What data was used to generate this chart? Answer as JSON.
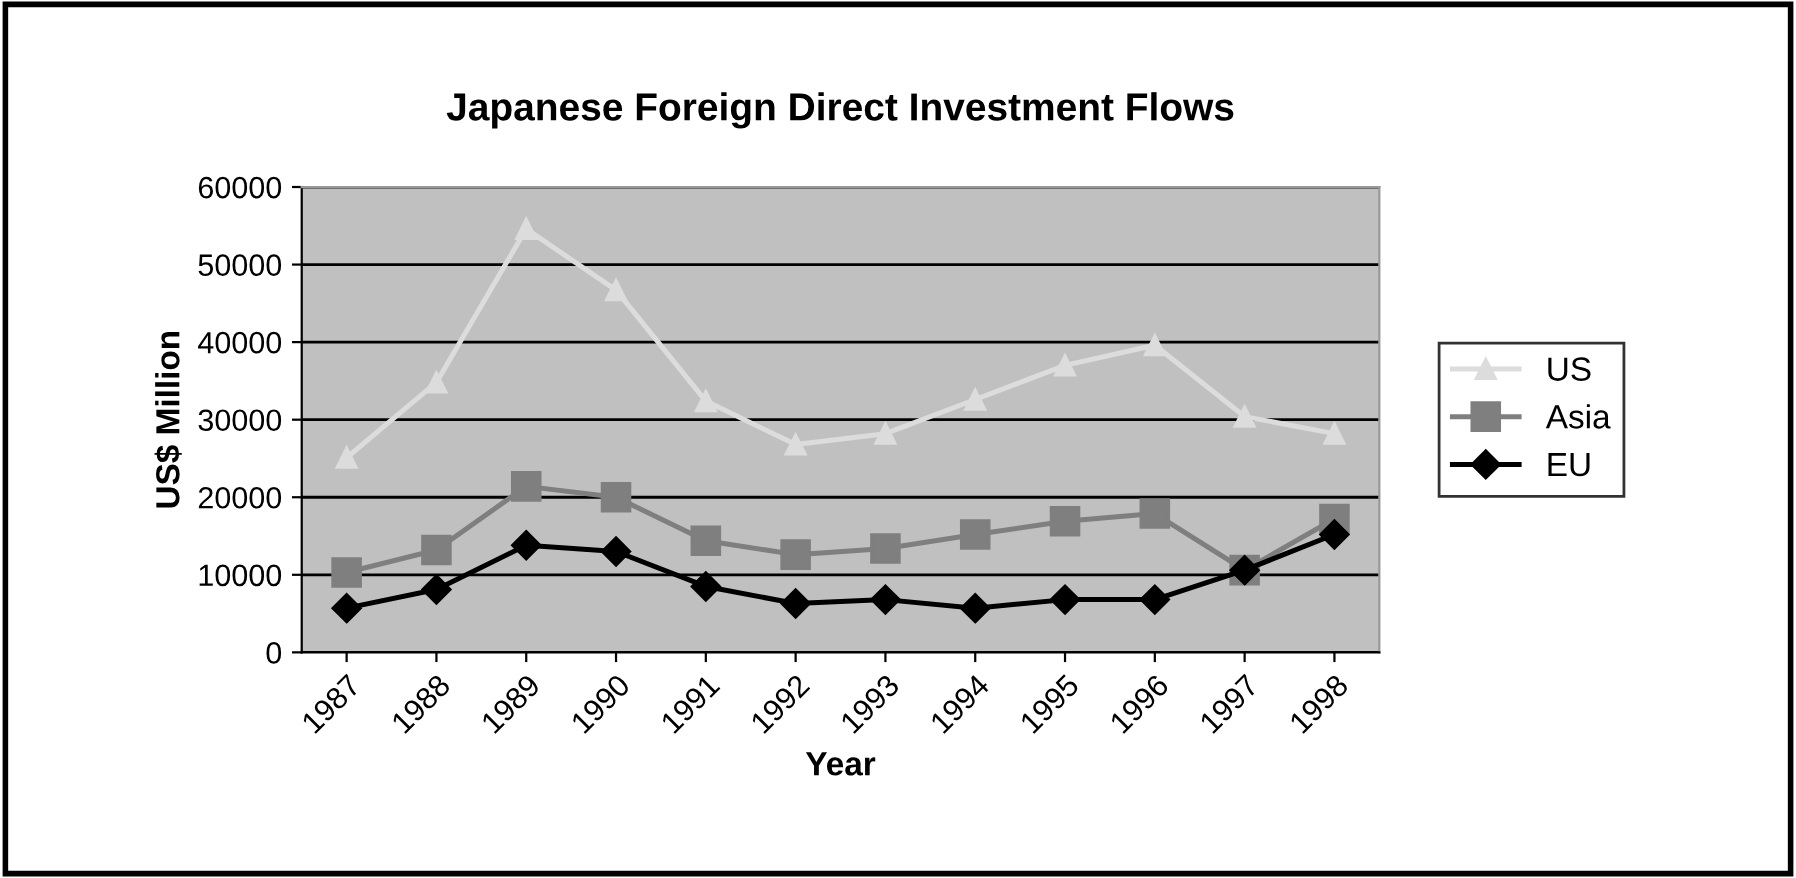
{
  "chart_data": {
    "type": "line",
    "title": "Japanese Foreign Direct Investment Flows",
    "xlabel": "Year",
    "ylabel": "US$ Million",
    "categories": [
      "1987",
      "1988",
      "1989",
      "1990",
      "1991",
      "1992",
      "1993",
      "1994",
      "1995",
      "1996",
      "1997",
      "1998"
    ],
    "series": [
      {
        "name": "US",
        "color": "#dcdcdc",
        "marker": "triangle",
        "values": [
          25100,
          34800,
          54600,
          46700,
          32400,
          26800,
          28200,
          32600,
          37000,
          39600,
          30400,
          28200
        ]
      },
      {
        "name": "Asia",
        "color": "#7f7f7f",
        "marker": "square",
        "values": [
          10300,
          13200,
          21400,
          20000,
          14400,
          12600,
          13400,
          15200,
          16900,
          17900,
          10600,
          17200
        ]
      },
      {
        "name": "EU",
        "color": "#000000",
        "marker": "diamond",
        "values": [
          5700,
          8100,
          13800,
          13000,
          8500,
          6300,
          6800,
          5700,
          6800,
          6800,
          10600,
          15200
        ]
      }
    ],
    "ylim": [
      0,
      60000
    ],
    "yticks": [
      0,
      10000,
      20000,
      30000,
      40000,
      50000,
      60000
    ],
    "grid": "y",
    "legend": "right"
  }
}
